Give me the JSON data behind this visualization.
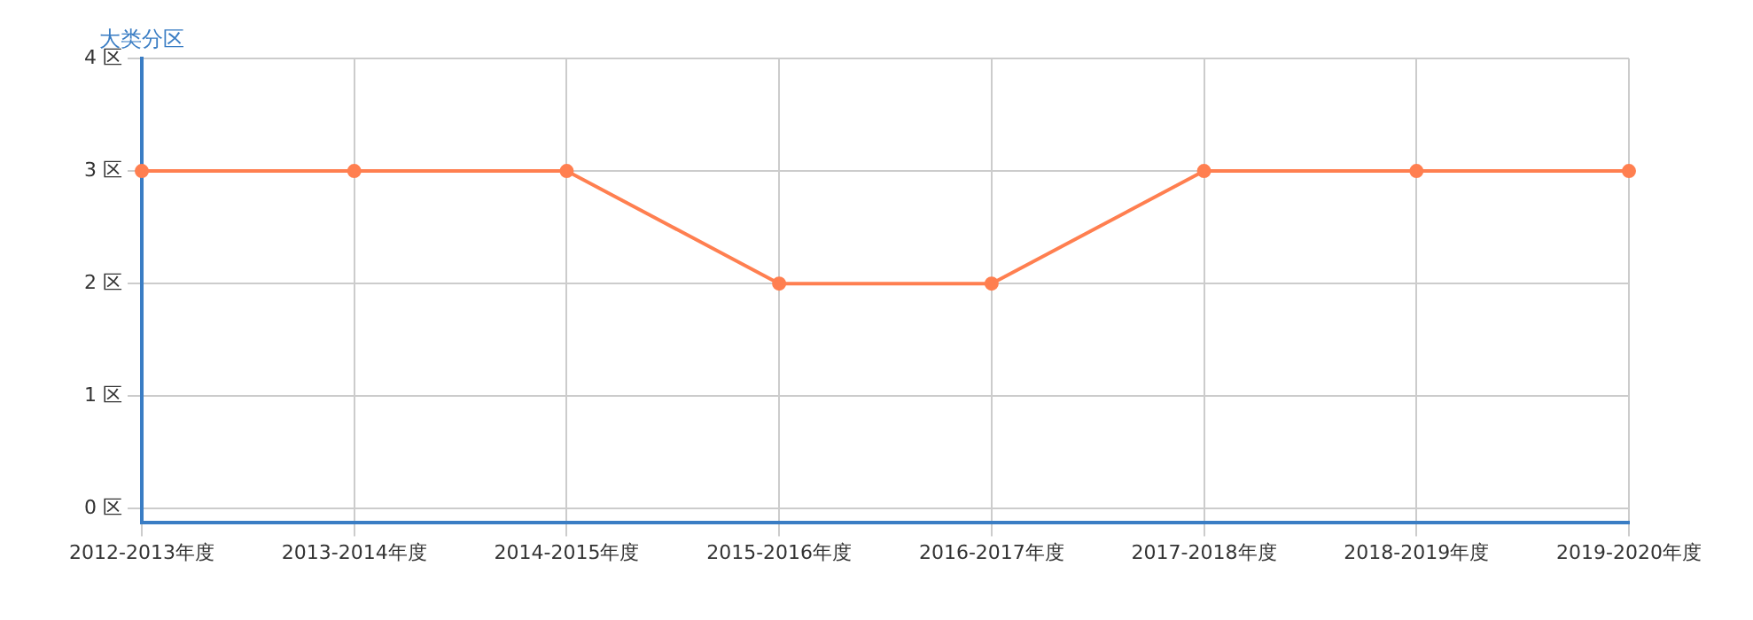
{
  "chart_data": {
    "type": "line",
    "ylabel": "大类分区",
    "categories": [
      "2012-2013年度",
      "2013-2014年度",
      "2014-2015年度",
      "2015-2016年度",
      "2016-2017年度",
      "2017-2018年度",
      "2018-2019年度",
      "2019-2020年度"
    ],
    "series": [
      {
        "color": "#ff7f50",
        "values": [
          3,
          3,
          3,
          2,
          2,
          3,
          3,
          3
        ]
      }
    ],
    "ylim": [
      -0.12,
      4
    ],
    "yticks": [
      {
        "value": 0,
        "label": "0 区"
      },
      {
        "value": 1,
        "label": "1 区"
      },
      {
        "value": 2,
        "label": "2 区"
      },
      {
        "value": 3,
        "label": "3 区"
      },
      {
        "value": 4,
        "label": "4 区"
      }
    ],
    "grid": true,
    "legend": false,
    "marker": "circle",
    "line_style": "solid"
  }
}
